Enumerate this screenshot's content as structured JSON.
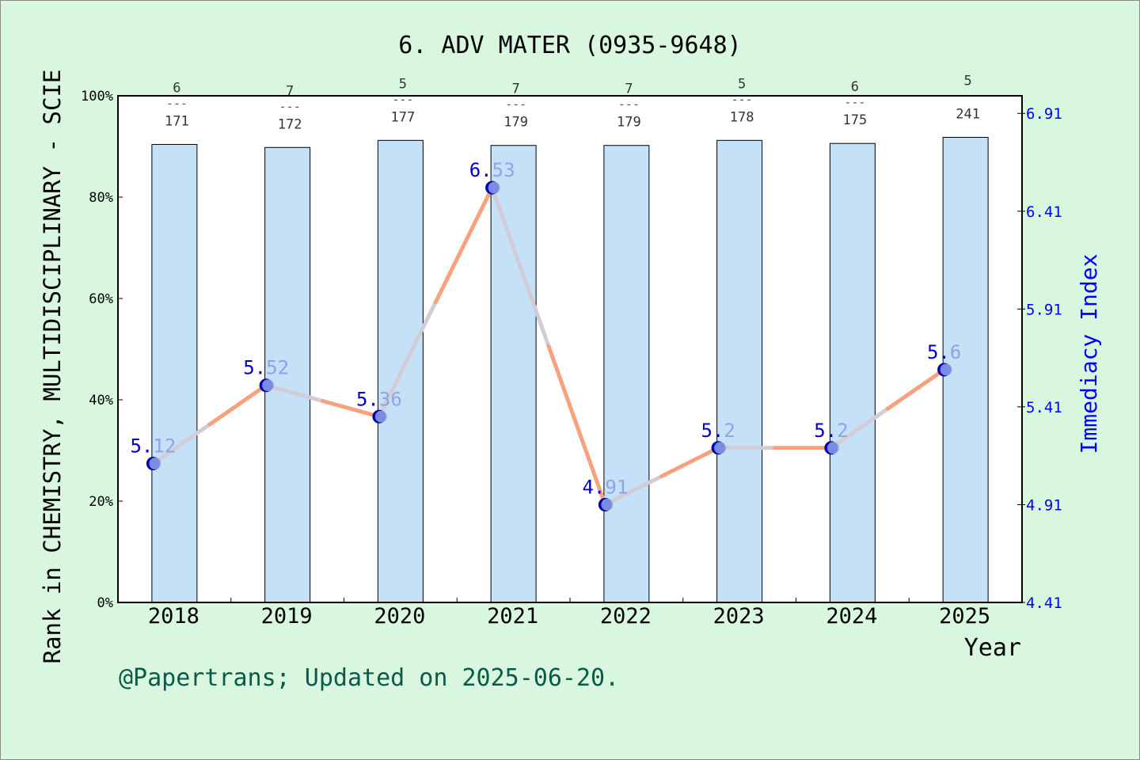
{
  "chart_data": {
    "type": "bar",
    "title": "6. ADV MATER (0935-9648)",
    "xlabel": "Year",
    "ylabel": "Rank in CHEMISTRY, MULTIDISCIPLINARY - SCIE",
    "y2label": "Immediacy Index",
    "footer": "@Papertrans; Updated on 2025-06-20.",
    "categories": [
      "2018",
      "2019",
      "2020",
      "2021",
      "2022",
      "2023",
      "2024",
      "2025"
    ],
    "ylim": [
      0,
      100
    ],
    "y_ticks": [
      "0%",
      "20%",
      "40%",
      "60%",
      "80%",
      "100%"
    ],
    "y2lim": [
      4.41,
      7.0
    ],
    "y2_ticks": [
      "4.41",
      "4.91",
      "5.41",
      "5.91",
      "6.41",
      "6.91"
    ],
    "bars": {
      "values": [
        90.4,
        89.8,
        91.2,
        90.2,
        90.2,
        91.2,
        90.6,
        91.8
      ],
      "rank": [
        "6",
        "7",
        "5",
        "7",
        "7",
        "5",
        "6",
        "5"
      ],
      "total": [
        "171",
        "172",
        "177",
        "179",
        "179",
        "178",
        "175",
        "241"
      ],
      "fraction_line": [
        "---",
        "---",
        "---",
        "---",
        "---",
        "---",
        "---",
        ""
      ],
      "color": "#c5e1f7"
    },
    "line": {
      "name": "Immediacy Index",
      "values": [
        5.12,
        5.52,
        5.36,
        6.53,
        4.91,
        5.2,
        5.2,
        5.6
      ],
      "labels_head": [
        "5.",
        "5.",
        "5.",
        "6.",
        "4.",
        "5.",
        "5.",
        "5."
      ],
      "labels_tail": [
        "12",
        "52",
        "36",
        "53",
        "91",
        "2",
        "2",
        "6"
      ],
      "color": "#f7a27e",
      "marker_color": "#0000cc"
    },
    "colors": {
      "background": "#d9f7df",
      "right_axis": "#0000ff",
      "footer": "#0a5a4a"
    }
  }
}
